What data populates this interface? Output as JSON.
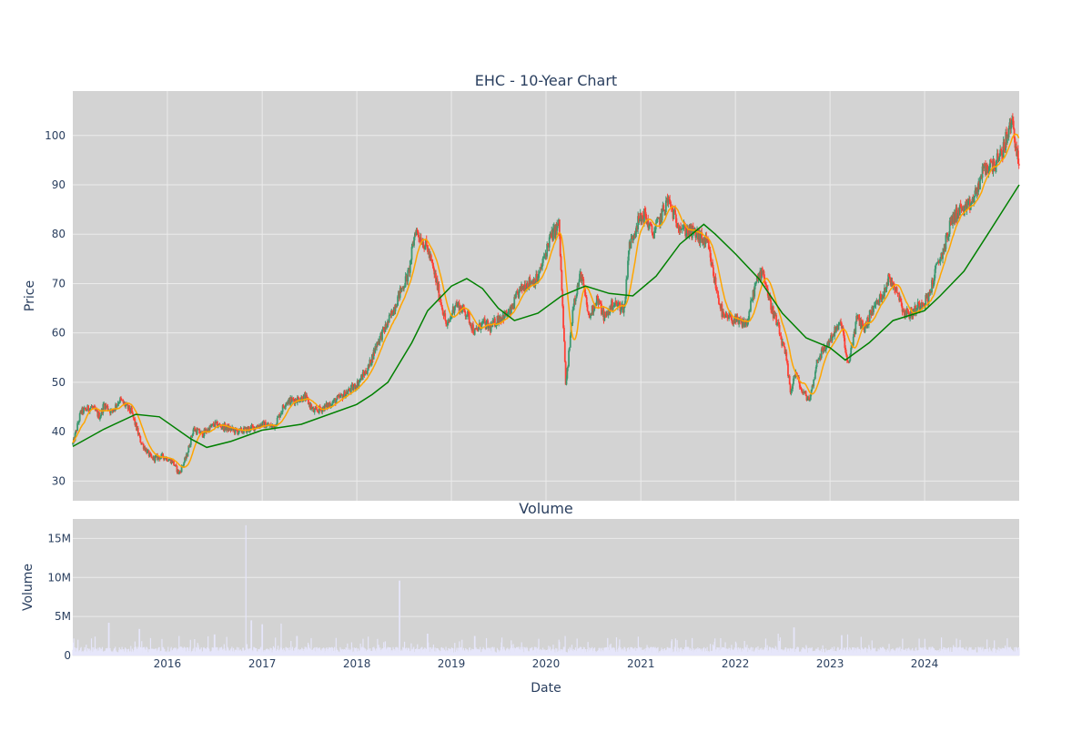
{
  "chart_data": [
    {
      "type": "candlestick",
      "title": "EHC - 10-Year Chart",
      "xlabel": "",
      "ylabel": "Price",
      "ylim": [
        26,
        109
      ],
      "yticks": [
        30,
        40,
        50,
        60,
        70,
        80,
        90,
        100
      ],
      "xlim": [
        "2015-01-01",
        "2024-12-31"
      ],
      "xticks": [
        {
          "date": "2016-01-01",
          "label": "2016"
        },
        {
          "date": "2017-01-01",
          "label": "2017"
        },
        {
          "date": "2018-01-01",
          "label": "2018"
        },
        {
          "date": "2019-01-01",
          "label": "2019"
        },
        {
          "date": "2020-01-01",
          "label": "2020"
        },
        {
          "date": "2021-01-01",
          "label": "2021"
        },
        {
          "date": "2022-01-01",
          "label": "2022"
        },
        {
          "date": "2023-01-01",
          "label": "2023"
        },
        {
          "date": "2024-01-01",
          "label": "2024"
        }
      ],
      "grid": true,
      "legend": "none",
      "colors": {
        "increasing": "#3d9970",
        "decreasing": "#ff4136",
        "ma_short": "#ffa500",
        "ma_long": "#008000",
        "plot_bg": "#d3d3d3",
        "grid": "#ebebeb"
      },
      "price_path": [
        [
          "2015-01-02",
          37.5
        ],
        [
          "2015-02-01",
          44
        ],
        [
          "2015-03-15",
          45
        ],
        [
          "2015-04-15",
          43
        ],
        [
          "2015-05-01",
          45.5
        ],
        [
          "2015-06-01",
          44
        ],
        [
          "2015-07-01",
          46.5
        ],
        [
          "2015-08-15",
          44
        ],
        [
          "2015-09-20",
          38
        ],
        [
          "2015-11-01",
          34.5
        ],
        [
          "2015-12-15",
          35
        ],
        [
          "2016-01-20",
          34
        ],
        [
          "2016-02-15",
          31.5
        ],
        [
          "2016-03-15",
          35
        ],
        [
          "2016-04-10",
          40.5
        ],
        [
          "2016-05-15",
          39.5
        ],
        [
          "2016-07-01",
          41.5
        ],
        [
          "2016-08-01",
          41
        ],
        [
          "2016-10-01",
          40
        ],
        [
          "2016-11-10",
          40.5
        ],
        [
          "2016-12-31",
          41.5
        ],
        [
          "2017-02-15",
          41
        ],
        [
          "2017-04-01",
          46
        ],
        [
          "2017-06-15",
          47
        ],
        [
          "2017-07-20",
          44
        ],
        [
          "2017-09-01",
          45
        ],
        [
          "2017-11-01",
          47
        ],
        [
          "2017-12-31",
          49.5
        ],
        [
          "2018-02-15",
          53
        ],
        [
          "2018-03-20",
          58
        ],
        [
          "2018-05-01",
          62
        ],
        [
          "2018-06-15",
          68
        ],
        [
          "2018-07-20",
          72
        ],
        [
          "2018-08-15",
          81
        ],
        [
          "2018-10-01",
          77
        ],
        [
          "2018-11-01",
          71
        ],
        [
          "2018-12-15",
          61
        ],
        [
          "2019-01-15",
          66
        ],
        [
          "2019-03-01",
          64
        ],
        [
          "2019-04-01",
          60
        ],
        [
          "2019-05-01",
          62
        ],
        [
          "2019-06-01",
          61
        ],
        [
          "2019-07-01",
          63
        ],
        [
          "2019-08-15",
          64
        ],
        [
          "2019-09-15",
          68
        ],
        [
          "2019-10-15",
          70
        ],
        [
          "2019-12-01",
          71
        ],
        [
          "2020-01-15",
          79
        ],
        [
          "2020-02-20",
          82
        ],
        [
          "2020-03-18",
          49
        ],
        [
          "2020-04-15",
          66
        ],
        [
          "2020-05-15",
          72
        ],
        [
          "2020-06-15",
          63
        ],
        [
          "2020-07-15",
          67
        ],
        [
          "2020-08-15",
          63
        ],
        [
          "2020-09-15",
          66
        ],
        [
          "2020-10-30",
          65
        ],
        [
          "2020-11-15",
          77
        ],
        [
          "2020-12-15",
          82
        ],
        [
          "2021-01-15",
          84
        ],
        [
          "2021-02-15",
          80
        ],
        [
          "2021-03-15",
          83
        ],
        [
          "2021-04-15",
          87
        ],
        [
          "2021-05-15",
          83
        ],
        [
          "2021-06-15",
          81
        ],
        [
          "2021-08-01",
          80
        ],
        [
          "2021-09-15",
          78
        ],
        [
          "2021-10-15",
          70
        ],
        [
          "2021-11-15",
          63
        ],
        [
          "2021-12-15",
          63
        ],
        [
          "2022-01-15",
          62
        ],
        [
          "2022-02-15",
          62
        ],
        [
          "2022-03-15",
          69
        ],
        [
          "2022-04-15",
          73
        ],
        [
          "2022-05-15",
          66
        ],
        [
          "2022-06-15",
          61
        ],
        [
          "2022-07-15",
          55
        ],
        [
          "2022-08-01",
          48
        ],
        [
          "2022-08-20",
          52
        ],
        [
          "2022-09-15",
          48
        ],
        [
          "2022-10-15",
          46.5
        ],
        [
          "2022-11-15",
          55
        ],
        [
          "2022-12-15",
          57
        ],
        [
          "2023-01-15",
          60
        ],
        [
          "2023-02-15",
          62
        ],
        [
          "2023-03-10",
          53
        ],
        [
          "2023-04-15",
          63
        ],
        [
          "2023-05-15",
          61
        ],
        [
          "2023-06-15",
          65
        ],
        [
          "2023-07-15",
          67
        ],
        [
          "2023-08-15",
          71
        ],
        [
          "2023-09-15",
          69
        ],
        [
          "2023-10-15",
          64
        ],
        [
          "2023-11-15",
          64
        ],
        [
          "2023-12-15",
          66
        ],
        [
          "2024-01-15",
          67
        ],
        [
          "2024-02-15",
          73
        ],
        [
          "2024-03-15",
          77
        ],
        [
          "2024-04-15",
          83
        ],
        [
          "2024-05-15",
          85
        ],
        [
          "2024-06-15",
          85
        ],
        [
          "2024-07-15",
          88
        ],
        [
          "2024-08-15",
          93
        ],
        [
          "2024-09-15",
          94
        ],
        [
          "2024-10-15",
          95
        ],
        [
          "2024-11-15",
          100
        ],
        [
          "2024-12-05",
          103
        ],
        [
          "2024-12-31",
          93
        ]
      ],
      "ma_long_path": [
        [
          "2015-01-01",
          37
        ],
        [
          "2015-05-01",
          40.5
        ],
        [
          "2015-09-01",
          43.5
        ],
        [
          "2015-12-01",
          43
        ],
        [
          "2016-04-01",
          38.5
        ],
        [
          "2016-06-01",
          36.8
        ],
        [
          "2016-09-01",
          38
        ],
        [
          "2016-12-31",
          40.3
        ],
        [
          "2017-06-01",
          41.5
        ],
        [
          "2017-12-31",
          45.5
        ],
        [
          "2018-03-01",
          47.5
        ],
        [
          "2018-05-01",
          50
        ],
        [
          "2018-08-01",
          58
        ],
        [
          "2018-10-01",
          64.5
        ],
        [
          "2019-01-01",
          69.5
        ],
        [
          "2019-03-01",
          71
        ],
        [
          "2019-05-01",
          69
        ],
        [
          "2019-07-01",
          65
        ],
        [
          "2019-09-01",
          62.5
        ],
        [
          "2019-12-01",
          64
        ],
        [
          "2020-03-01",
          67.5
        ],
        [
          "2020-06-01",
          69.5
        ],
        [
          "2020-09-01",
          68
        ],
        [
          "2020-12-01",
          67.5
        ],
        [
          "2021-03-01",
          71.5
        ],
        [
          "2021-06-01",
          78
        ],
        [
          "2021-09-01",
          82
        ],
        [
          "2021-10-15",
          80
        ],
        [
          "2022-01-01",
          76
        ],
        [
          "2022-04-01",
          71
        ],
        [
          "2022-07-01",
          64
        ],
        [
          "2022-10-01",
          59
        ],
        [
          "2023-01-01",
          57
        ],
        [
          "2023-03-01",
          54.5
        ],
        [
          "2023-06-01",
          58
        ],
        [
          "2023-09-01",
          62.5
        ],
        [
          "2023-12-31",
          64.5
        ],
        [
          "2024-03-01",
          67.5
        ],
        [
          "2024-06-01",
          72.5
        ],
        [
          "2024-09-01",
          80
        ],
        [
          "2024-12-31",
          90
        ]
      ]
    },
    {
      "type": "bar",
      "title": "Volume",
      "xlabel": "Date",
      "ylabel": "Volume",
      "ylim": [
        0,
        17500000
      ],
      "yticks": [
        {
          "value": 0,
          "label": "0"
        },
        {
          "value": 5000000,
          "label": "5M"
        },
        {
          "value": 10000000,
          "label": "10M"
        },
        {
          "value": 15000000,
          "label": "15M"
        }
      ],
      "grid": true,
      "colors": {
        "bar": "#e6e6fa",
        "plot_bg": "#d3d3d3"
      },
      "spikes": [
        [
          "2015-05-20",
          4200000
        ],
        [
          "2015-09-15",
          3400000
        ],
        [
          "2016-02-15",
          2500000
        ],
        [
          "2016-04-15",
          2100000
        ],
        [
          "2016-07-01",
          2700000
        ],
        [
          "2016-10-30",
          16700000
        ],
        [
          "2016-11-20",
          4500000
        ],
        [
          "2017-01-01",
          4000000
        ],
        [
          "2017-03-15",
          4100000
        ],
        [
          "2017-05-15",
          2500000
        ],
        [
          "2018-06-15",
          9600000
        ],
        [
          "2018-10-01",
          2800000
        ],
        [
          "2019-04-01",
          2500000
        ],
        [
          "2019-07-15",
          2300000
        ],
        [
          "2020-03-15",
          2500000
        ],
        [
          "2022-06-15",
          2800000
        ],
        [
          "2022-08-15",
          3600000
        ],
        [
          "2023-02-15",
          2600000
        ],
        [
          "2023-03-10",
          2700000
        ],
        [
          "2024-11-15",
          2200000
        ]
      ],
      "baseline_volume": 700000
    }
  ]
}
